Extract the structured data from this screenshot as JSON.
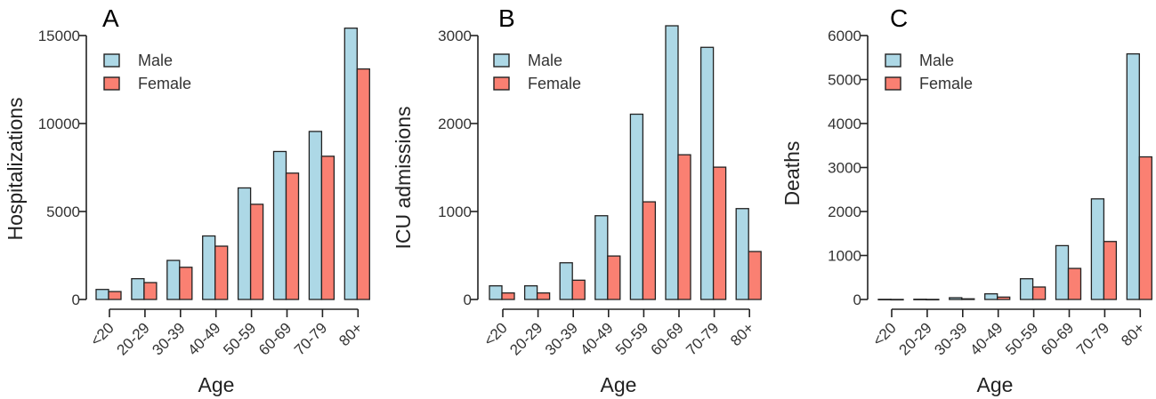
{
  "chart_data": [
    {
      "type": "bar",
      "panel_label": "A",
      "xlabel": "Age",
      "ylabel": "Hospitalizations",
      "ylim": [
        0,
        15000
      ],
      "yticks": [
        0,
        5000,
        10000,
        15000
      ],
      "categories": [
        "<20",
        "20-29",
        "30-39",
        "40-49",
        "50-59",
        "60-69",
        "70-79",
        "80+"
      ],
      "legend_position": "top-left",
      "grid": false,
      "series": [
        {
          "name": "Male",
          "color": "#add8e6",
          "values": [
            570,
            1180,
            2220,
            3610,
            6340,
            8410,
            9550,
            15420
          ]
        },
        {
          "name": "Female",
          "color": "#fa8072",
          "values": [
            450,
            960,
            1830,
            3030,
            5410,
            7180,
            8140,
            13100
          ]
        }
      ]
    },
    {
      "type": "bar",
      "panel_label": "B",
      "xlabel": "Age",
      "ylabel": "ICU admissions",
      "ylim": [
        0,
        3000
      ],
      "yticks": [
        0,
        1000,
        2000,
        3000
      ],
      "categories": [
        "<20",
        "20-29",
        "30-39",
        "40-49",
        "50-59",
        "60-69",
        "70-79",
        "80+"
      ],
      "legend_position": "top-left",
      "grid": false,
      "series": [
        {
          "name": "Male",
          "color": "#add8e6",
          "values": [
            155,
            155,
            417,
            952,
            2106,
            3111,
            2866,
            1033
          ]
        },
        {
          "name": "Female",
          "color": "#fa8072",
          "values": [
            74,
            74,
            219,
            494,
            1110,
            1645,
            1504,
            545
          ]
        }
      ]
    },
    {
      "type": "bar",
      "panel_label": "C",
      "xlabel": "Age",
      "ylabel": "Deaths",
      "ylim": [
        0,
        6000
      ],
      "yticks": [
        0,
        1000,
        2000,
        3000,
        4000,
        5000,
        6000
      ],
      "categories": [
        "<20",
        "20-29",
        "30-39",
        "40-49",
        "50-59",
        "60-69",
        "70-79",
        "80+"
      ],
      "legend_position": "top-left",
      "grid": false,
      "series": [
        {
          "name": "Male",
          "color": "#add8e6",
          "values": [
            3,
            5,
            40,
            128,
            471,
            1224,
            2287,
            5583
          ]
        },
        {
          "name": "Female",
          "color": "#fa8072",
          "values": [
            1,
            2,
            15,
            54,
            283,
            706,
            1318,
            3242
          ]
        }
      ]
    }
  ]
}
